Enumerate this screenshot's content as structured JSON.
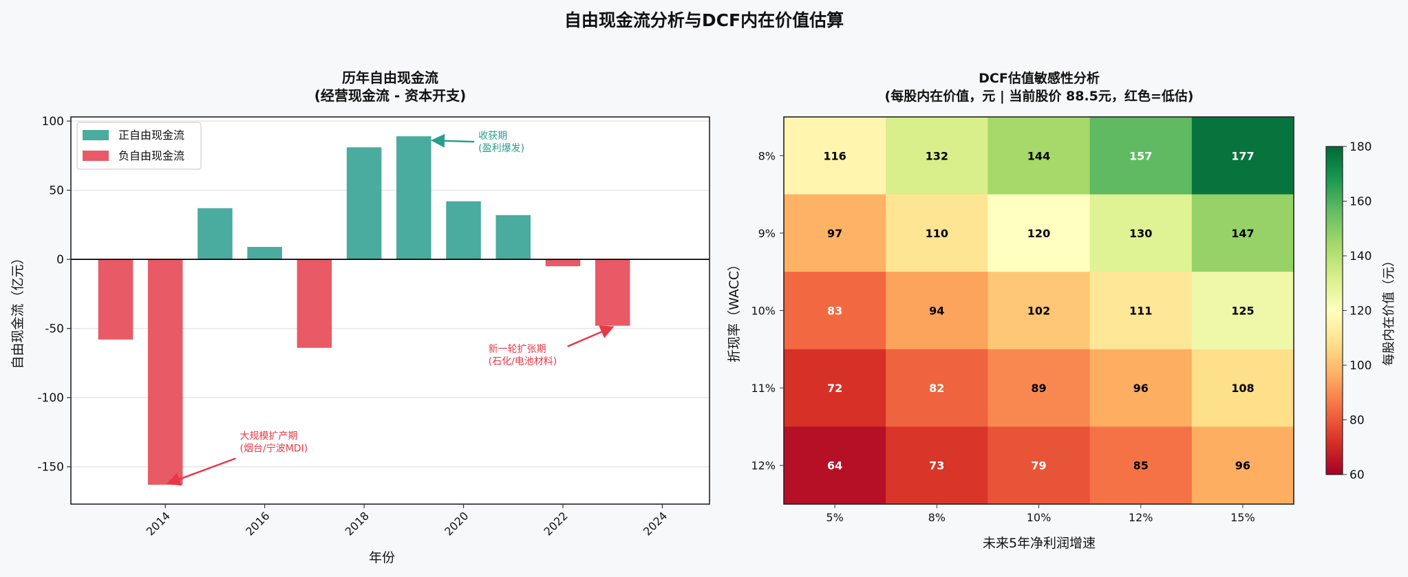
{
  "title": "自由现金流分析与DCF内在价值估算",
  "colors": {
    "positive": "#4aab9f",
    "negative": "#e85a66",
    "pos_annot": "#2a9d8f",
    "neg_annot": "#e63946"
  },
  "chart_data": [
    {
      "type": "bar",
      "title_line1": "历年自由现金流",
      "title_line2": "(经营现金流 - 资本开支)",
      "xlabel": "年份",
      "ylabel": "自由现金流（亿元）",
      "x": [
        2013,
        2014,
        2015,
        2016,
        2017,
        2018,
        2019,
        2020,
        2021,
        2022,
        2023
      ],
      "values": [
        -58,
        -163,
        37,
        9,
        -64,
        81,
        89,
        42,
        32,
        -5,
        -48
      ],
      "xticks": [
        2014,
        2016,
        2018,
        2020,
        2022,
        2024
      ],
      "yticks": [
        100,
        50,
        0,
        -50,
        -100,
        -150
      ],
      "xlim": [
        2012.1,
        2024.95
      ],
      "ylim": [
        -177,
        103
      ],
      "grid": "horizontal",
      "legend": {
        "position": "top-left",
        "entries": [
          "正自由现金流",
          "负自由现金流"
        ]
      },
      "annotations": [
        {
          "line1": "收获期",
          "line2": "(盈利爆发)",
          "target": [
            2019,
            89
          ],
          "text_at": [
            2016.6,
            117
          ],
          "color": "pos"
        },
        {
          "line1": "新一轮扩张期",
          "line2": "(石化/电池材料)",
          "target": [
            2023,
            -48
          ],
          "text_at": [
            2020.5,
            -67
          ],
          "color": "neg"
        },
        {
          "line1": "大规模扩产期",
          "line2": "(烟台/宁波MDI)",
          "target": [
            2014,
            -163
          ],
          "text_at": [
            2015.5,
            -130
          ],
          "color": "neg"
        }
      ]
    },
    {
      "type": "heatmap",
      "title_line1": "DCF估值敏感性分析",
      "title_line2": "(每股内在价值，元 | 当前股价 88.5元，红色=低估)",
      "xlabel": "未来5年净利润增速",
      "ylabel": "折现率（WACC）",
      "x_categories": [
        "5%",
        "8%",
        "10%",
        "12%",
        "15%"
      ],
      "y_categories": [
        "8%",
        "9%",
        "10%",
        "11%",
        "12%"
      ],
      "values": [
        [
          116,
          132,
          144,
          157,
          177
        ],
        [
          97,
          110,
          120,
          130,
          147
        ],
        [
          83,
          94,
          102,
          111,
          125
        ],
        [
          72,
          82,
          89,
          96,
          108
        ],
        [
          64,
          73,
          79,
          85,
          96
        ]
      ],
      "colormap": "RdYlGn",
      "vmin": 60,
      "vmax": 180,
      "colorbar": {
        "label": "每股内在价值（元）",
        "ticks": [
          60,
          80,
          100,
          120,
          140,
          160,
          180
        ]
      }
    }
  ]
}
